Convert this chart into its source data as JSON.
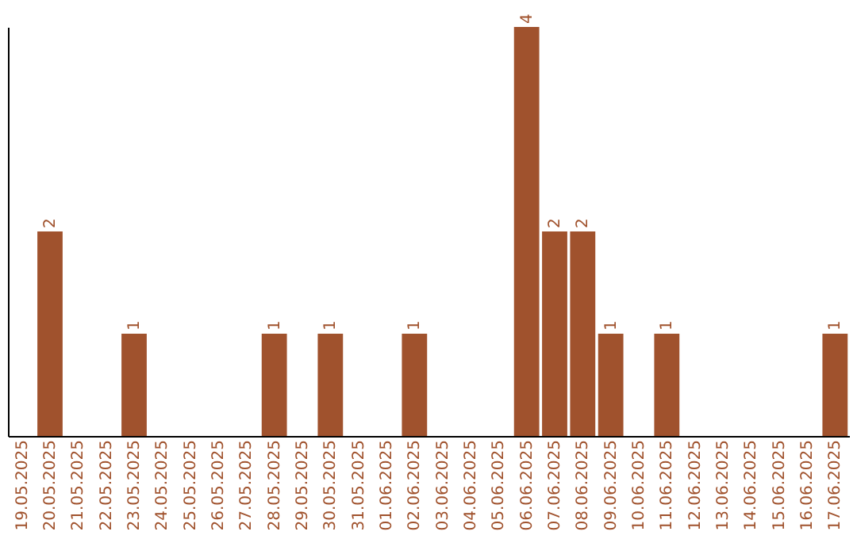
{
  "chart_data": {
    "type": "bar",
    "categories": [
      "19.05.2025",
      "20.05.2025",
      "21.05.2025",
      "22.05.2025",
      "23.05.2025",
      "24.05.2025",
      "25.05.2025",
      "26.05.2025",
      "27.05.2025",
      "28.05.2025",
      "29.05.2025",
      "30.05.2025",
      "31.05.2025",
      "01.06.2025",
      "02.06.2025",
      "03.06.2025",
      "04.06.2025",
      "05.06.2025",
      "06.06.2025",
      "07.06.2025",
      "08.06.2025",
      "09.06.2025",
      "10.06.2025",
      "11.06.2025",
      "12.06.2025",
      "13.06.2025",
      "14.06.2025",
      "15.06.2025",
      "16.06.2025",
      "17.06.2025"
    ],
    "values": [
      0,
      2,
      0,
      0,
      1,
      0,
      0,
      0,
      0,
      1,
      0,
      1,
      0,
      0,
      1,
      0,
      0,
      0,
      4,
      2,
      2,
      1,
      0,
      1,
      0,
      0,
      0,
      0,
      0,
      1
    ],
    "value_labels": [
      null,
      "2",
      null,
      null,
      "1",
      null,
      null,
      null,
      null,
      "1",
      null,
      "1",
      null,
      null,
      "1",
      null,
      null,
      null,
      "4",
      "2",
      "2",
      "1",
      null,
      "1",
      null,
      null,
      null,
      null,
      null,
      "1"
    ],
    "color": "#a0522d",
    "grid": false,
    "tick_labels": "x"
  }
}
